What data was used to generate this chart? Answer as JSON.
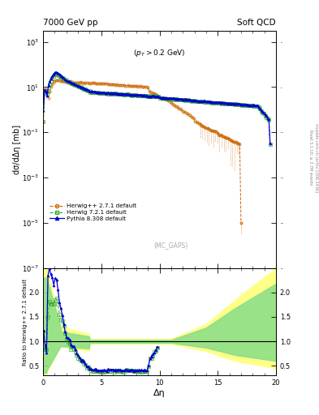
{
  "title_left": "7000 GeV pp",
  "title_right": "Soft QCD",
  "ylabel_main": "dσ/dΔη [mb]",
  "xlabel": "Δη",
  "ylabel_ratio": "Ratio to Herwig++ 2.7.1 default",
  "annotation": "(p_{T} > 0.2 GeV)",
  "annotation2": "(MC_GAPS)",
  "side_text1": "mcplots.cern.ch [arXiv:1306.3436]",
  "side_text2": "Rivet 3.1.10; ≥ 2.7M events",
  "xlim": [
    0,
    20
  ],
  "ylim_main": [
    1e-07,
    3000.0
  ],
  "ylim_ratio": [
    0.3,
    2.5
  ],
  "ratio_yticks": [
    0.5,
    1.0,
    1.5,
    2.0
  ],
  "colors": {
    "herwigpp": "#cc6600",
    "herwig7": "#33aa33",
    "pythia": "#0000cc"
  }
}
